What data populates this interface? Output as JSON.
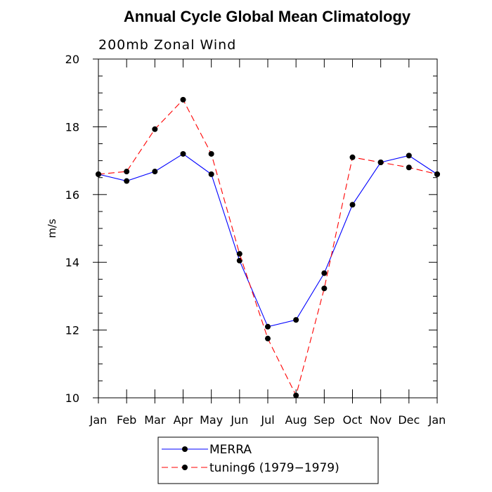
{
  "chart_data": {
    "type": "line",
    "title": "Annual Cycle Global Mean Climatology",
    "subtitle": "200mb Zonal Wind",
    "xlabel": "",
    "ylabel": "m/s",
    "categories": [
      "Jan",
      "Feb",
      "Mar",
      "Apr",
      "May",
      "Jun",
      "Jul",
      "Aug",
      "Sep",
      "Oct",
      "Nov",
      "Dec",
      "Jan"
    ],
    "ylim": [
      10,
      20
    ],
    "yticks": [
      10,
      12,
      14,
      16,
      18,
      20
    ],
    "grid": false,
    "legend_position": "bottom-center",
    "series": [
      {
        "name": "MERRA",
        "color": "#0000ff",
        "line_style": "solid",
        "marker": "filled-circle",
        "values": [
          16.6,
          16.4,
          16.68,
          17.2,
          16.6,
          14.05,
          12.1,
          12.3,
          13.68,
          15.7,
          16.95,
          17.15,
          16.6
        ]
      },
      {
        "name": "tuning6 (1979−1979)",
        "color": "#ff0000",
        "line_style": "dashed",
        "marker": "filled-circle",
        "values": [
          16.6,
          16.68,
          17.93,
          18.8,
          17.2,
          14.25,
          11.75,
          10.07,
          13.23,
          17.1,
          16.95,
          16.8,
          16.6
        ]
      }
    ]
  }
}
